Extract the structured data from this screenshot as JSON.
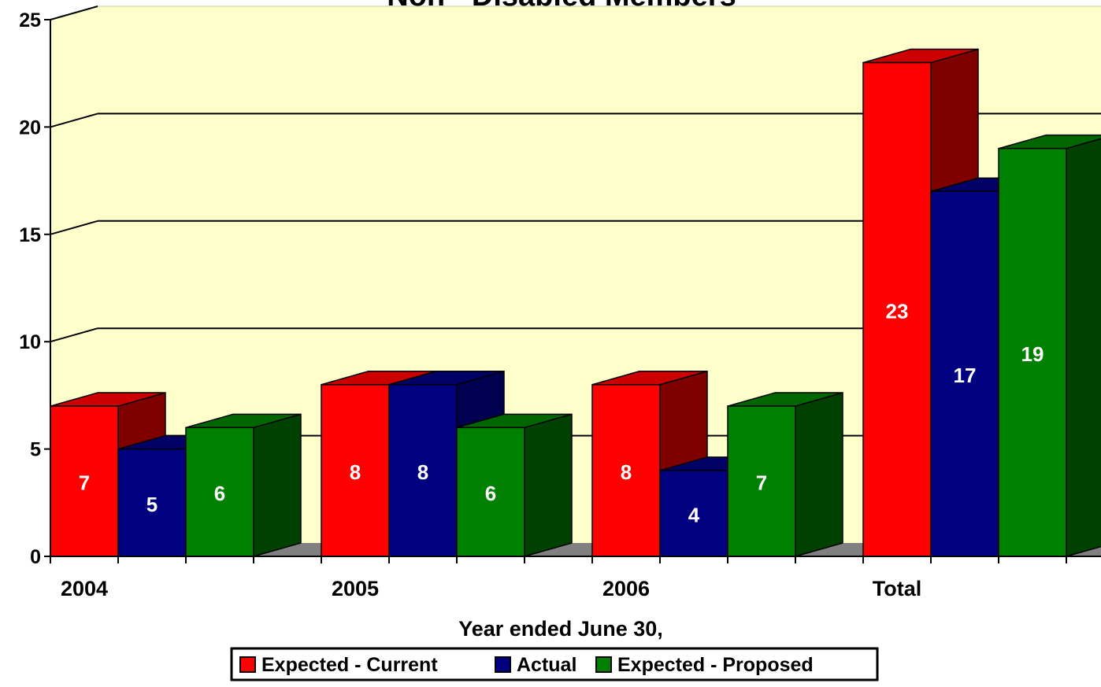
{
  "chart_data": {
    "type": "bar",
    "title": "Non - Disabled Members",
    "xlabel": "Year ended June 30,",
    "ylabel": "",
    "categories": [
      "2004",
      "2005",
      "2006",
      "Total"
    ],
    "series": [
      {
        "name": "Expected - Current",
        "values": [
          7,
          8,
          8,
          23
        ]
      },
      {
        "name": "Actual",
        "values": [
          5,
          8,
          4,
          17
        ]
      },
      {
        "name": "Expected - Proposed",
        "values": [
          6,
          6,
          7,
          19
        ]
      }
    ],
    "ylim": [
      0,
      25
    ],
    "yticks": [
      0,
      5,
      10,
      15,
      20,
      25
    ],
    "grid": true,
    "legend_position": "bottom",
    "style": "3d",
    "colors": {
      "plot_background": "#ffffcc",
      "series": [
        {
          "front": "#ff0000",
          "top": "#cc0000",
          "side": "#800000"
        },
        {
          "front": "#000080",
          "top": "#000066",
          "side": "#000050"
        },
        {
          "front": "#008000",
          "top": "#006600",
          "side": "#004000"
        }
      ],
      "floor": "#808080",
      "data_label": "#ffffff",
      "text": "#000000"
    }
  }
}
